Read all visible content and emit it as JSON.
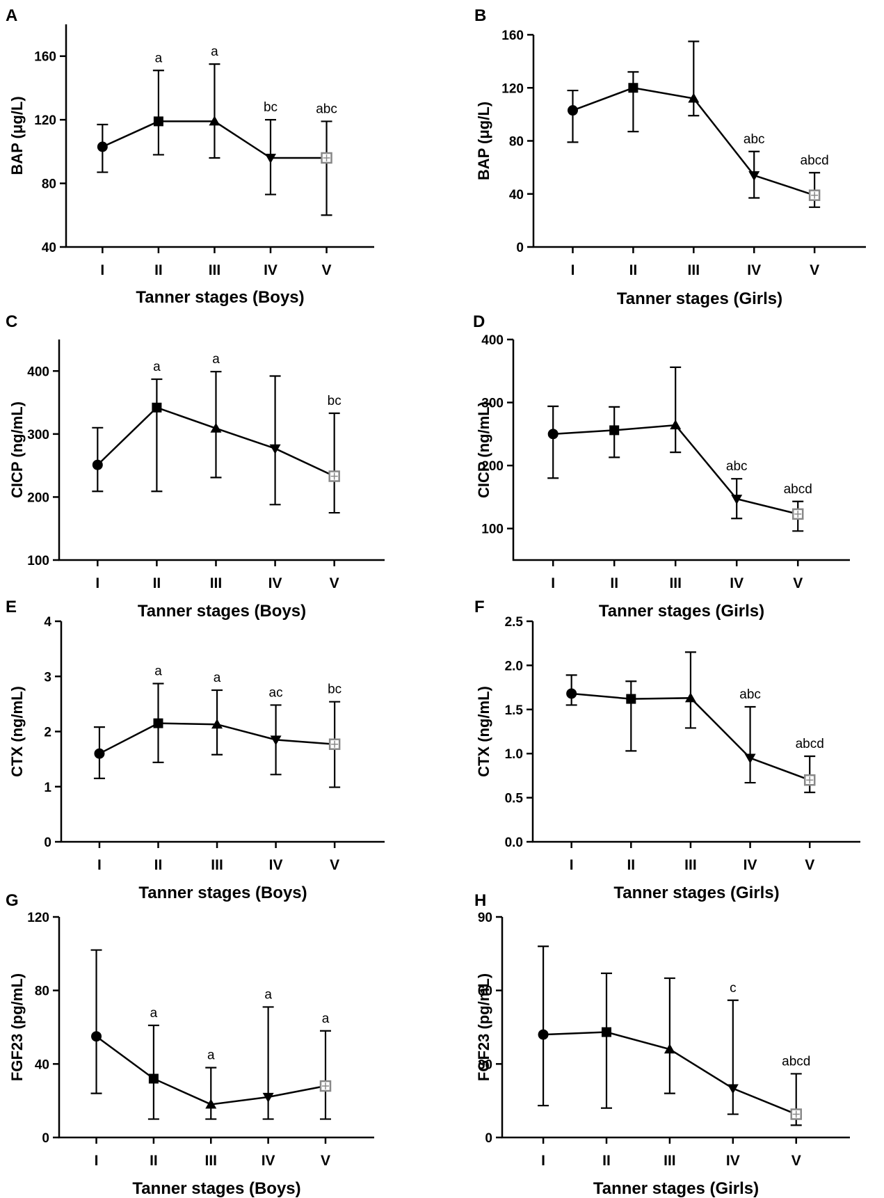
{
  "chart_data": [
    {
      "type": "line",
      "panel": "A",
      "ylabel": "BAP (μg/L)",
      "xlabel": "Tanner stages (Boys)",
      "categories": [
        "I",
        "II",
        "III",
        "IV",
        "V"
      ],
      "ylim": [
        40,
        180
      ],
      "yticks": [
        40,
        80,
        120,
        160
      ],
      "ytick_labels": [
        "40",
        "80",
        "120",
        "160"
      ],
      "series": [
        {
          "name": "Boys",
          "values": [
            103,
            119,
            119,
            96,
            96
          ],
          "err_low": [
            87,
            98,
            96,
            73,
            60
          ],
          "err_high": [
            117,
            151,
            155,
            120,
            119
          ],
          "markers": [
            "circle",
            "square",
            "triangle-up",
            "triangle-down",
            "open-square"
          ],
          "sig_labels": [
            "",
            "a",
            "a",
            "bc",
            "abc"
          ]
        }
      ]
    },
    {
      "type": "line",
      "panel": "B",
      "ylabel": "BAP (μg/L)",
      "xlabel": "Tanner stages (Girls)",
      "categories": [
        "I",
        "II",
        "III",
        "IV",
        "V"
      ],
      "ylim": [
        0,
        160
      ],
      "yticks": [
        0,
        40,
        80,
        120,
        160
      ],
      "ytick_labels": [
        "0",
        "40",
        "80",
        "120",
        "160"
      ],
      "series": [
        {
          "name": "Girls",
          "values": [
            103,
            120,
            112,
            54,
            39
          ],
          "err_low": [
            79,
            87,
            99,
            37,
            30
          ],
          "err_high": [
            118,
            132,
            155,
            72,
            56
          ],
          "markers": [
            "circle",
            "square",
            "triangle-up",
            "triangle-down",
            "open-square"
          ],
          "sig_labels": [
            "",
            "",
            "",
            "abc",
            "abcd"
          ]
        }
      ]
    },
    {
      "type": "line",
      "panel": "C",
      "ylabel": "CICP (ng/mL)",
      "xlabel": "Tanner stages (Boys)",
      "categories": [
        "I",
        "II",
        "III",
        "IV",
        "V"
      ],
      "ylim": [
        100,
        450
      ],
      "yticks": [
        100,
        200,
        300,
        400
      ],
      "ytick_labels": [
        "100",
        "200",
        "300",
        "400"
      ],
      "series": [
        {
          "name": "Boys",
          "values": [
            251,
            342,
            309,
            277,
            233
          ],
          "err_low": [
            209,
            209,
            231,
            188,
            175
          ],
          "err_high": [
            310,
            387,
            399,
            392,
            333
          ],
          "markers": [
            "circle",
            "square",
            "triangle-up",
            "triangle-down",
            "open-square"
          ],
          "sig_labels": [
            "",
            "a",
            "a",
            "",
            "bc"
          ]
        }
      ]
    },
    {
      "type": "line",
      "panel": "D",
      "ylabel": "CICP (ng/mL)",
      "xlabel": "Tanner stages (Girls)",
      "categories": [
        "I",
        "II",
        "III",
        "IV",
        "V"
      ],
      "ylim": [
        50,
        400
      ],
      "yticks": [
        100,
        200,
        300,
        400
      ],
      "ytick_labels": [
        "100",
        "200",
        "300",
        "400"
      ],
      "series": [
        {
          "name": "Girls",
          "values": [
            250,
            256,
            264,
            147,
            123
          ],
          "err_low": [
            180,
            213,
            221,
            116,
            96
          ],
          "err_high": [
            294,
            293,
            356,
            179,
            143
          ],
          "markers": [
            "circle",
            "square",
            "triangle-up",
            "triangle-down",
            "open-square"
          ],
          "sig_labels": [
            "",
            "",
            "",
            "abc",
            "abcd"
          ]
        }
      ]
    },
    {
      "type": "line",
      "panel": "E",
      "ylabel": "CTX (ng/mL)",
      "xlabel": "Tanner stages (Boys)",
      "categories": [
        "I",
        "II",
        "III",
        "IV",
        "V"
      ],
      "ylim": [
        0,
        4
      ],
      "yticks": [
        0,
        1,
        2,
        3,
        4
      ],
      "ytick_labels": [
        "0",
        "1",
        "2",
        "3",
        "4"
      ],
      "series": [
        {
          "name": "Boys",
          "values": [
            1.6,
            2.15,
            2.13,
            1.85,
            1.77
          ],
          "err_low": [
            1.15,
            1.44,
            1.58,
            1.22,
            0.99
          ],
          "err_high": [
            2.08,
            2.87,
            2.75,
            2.48,
            2.54
          ],
          "markers": [
            "circle",
            "square",
            "triangle-up",
            "triangle-down",
            "open-square"
          ],
          "sig_labels": [
            "",
            "a",
            "a",
            "ac",
            "bc"
          ]
        }
      ]
    },
    {
      "type": "line",
      "panel": "F",
      "ylabel": "CTX (ng/mL)",
      "xlabel": "Tanner stages (Girls)",
      "categories": [
        "I",
        "II",
        "III",
        "IV",
        "V"
      ],
      "ylim": [
        0,
        2.5
      ],
      "yticks": [
        0,
        0.5,
        1,
        1.5,
        2,
        2.5
      ],
      "ytick_labels": [
        "0.0",
        "0.5",
        "1.0",
        "1.5",
        "2.0",
        "2.5"
      ],
      "series": [
        {
          "name": "Girls",
          "values": [
            1.68,
            1.62,
            1.63,
            0.95,
            0.7
          ],
          "err_low": [
            1.55,
            1.03,
            1.29,
            0.67,
            0.56
          ],
          "err_high": [
            1.89,
            1.82,
            2.15,
            1.53,
            0.97
          ],
          "markers": [
            "circle",
            "square",
            "triangle-up",
            "triangle-down",
            "open-square"
          ],
          "sig_labels": [
            "",
            "",
            "",
            "abc",
            "abcd"
          ]
        }
      ]
    },
    {
      "type": "line",
      "panel": "G",
      "ylabel": "FGF23 (pg/mL)",
      "xlabel": "Tanner stages (Boys)",
      "categories": [
        "I",
        "II",
        "III",
        "IV",
        "V"
      ],
      "ylim": [
        0,
        120
      ],
      "yticks": [
        0,
        40,
        80,
        120
      ],
      "ytick_labels": [
        "0",
        "40",
        "80",
        "120"
      ],
      "series": [
        {
          "name": "Boys",
          "values": [
            55,
            32,
            18,
            22,
            28
          ],
          "err_low": [
            24,
            10,
            10,
            10,
            10
          ],
          "err_high": [
            102,
            61,
            38,
            71,
            58
          ],
          "markers": [
            "circle",
            "square",
            "triangle-up",
            "triangle-down",
            "open-square"
          ],
          "sig_labels": [
            "",
            "a",
            "a",
            "a",
            "a"
          ]
        }
      ]
    },
    {
      "type": "line",
      "panel": "H",
      "ylabel": "FGF23 (pg/mL)",
      "xlabel": "Tanner stages (Girls)",
      "categories": [
        "I",
        "II",
        "III",
        "IV",
        "V"
      ],
      "ylim": [
        0,
        90
      ],
      "yticks": [
        0,
        30,
        60,
        90
      ],
      "ytick_labels": [
        "0",
        "30",
        "60",
        "90"
      ],
      "series": [
        {
          "name": "Girls",
          "values": [
            42,
            43,
            36,
            20,
            9.5
          ],
          "err_low": [
            13,
            12,
            18,
            9.5,
            5
          ],
          "err_high": [
            78,
            67,
            65,
            56,
            26
          ],
          "markers": [
            "circle",
            "square",
            "triangle-up",
            "triangle-down",
            "open-square"
          ],
          "sig_labels": [
            "",
            "",
            "",
            "c",
            "abcd"
          ]
        }
      ]
    }
  ]
}
